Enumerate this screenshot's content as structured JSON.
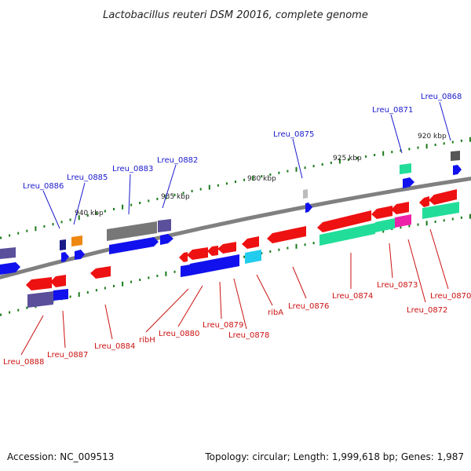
{
  "title": "Lactobacillus reuteri DSM 20016, complete genome",
  "footer": {
    "accession": "Accession: NC_009513",
    "summary": "Topology: circular; Length: 1,999,618 bp; Genes: 1,987"
  },
  "scale_labels": [
    "940 kbp",
    "935 kbp",
    "930 kbp",
    "925 kbp",
    "920 kbp"
  ],
  "top_labels": [
    "Lreu_0886",
    "Lreu_0885",
    "Lreu_0883",
    "Lreu_0882",
    "Lreu_0875",
    "Lreu_0871",
    "Lreu_0868"
  ],
  "bottom_labels": [
    "Lreu_0888",
    "Lreu_0887",
    "Lreu_0884",
    "ribH",
    "Lreu_0880",
    "Lreu_0879",
    "Lreu_0878",
    "ribA",
    "Lreu_0876",
    "Lreu_0874",
    "Lreu_0873",
    "Lreu_0872",
    "Lreu_0870"
  ],
  "colors": {
    "red": "#ee1111",
    "blue": "#1111ee",
    "green": "#22dd99",
    "gray": "#777777",
    "slate": "#5a4f9a",
    "orange": "#ee8811",
    "cyan": "#22ccee",
    "magenta": "#ee22aa",
    "backbone": "#808080",
    "tick": "#1a7a1a"
  }
}
